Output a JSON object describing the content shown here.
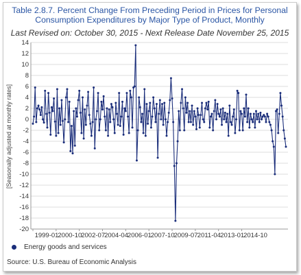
{
  "chart_data": {
    "type": "line",
    "title": "Table 2.8.7. Percent Change From Preceding Period in Prices for Personal Consumption Expenditures by Major Type of Product, Monthly",
    "subtitle": "Last Revised on: October 30, 2015 - Next Release Date November 25, 2015",
    "ylabel": "[Seasonally adjusted at monthly rates]",
    "xlabel": "",
    "ylim": [
      -20,
      14
    ],
    "y_ticks": [
      14,
      12,
      10,
      8,
      6,
      4,
      2,
      0,
      -2,
      -4,
      -6,
      -8,
      -10,
      -12,
      -14,
      -16,
      -18,
      -20
    ],
    "x_ticks": [
      "1999-01",
      "2000-10",
      "2002-07",
      "2004-04",
      "2006-01",
      "2007-10",
      "2009-07",
      "2011-04",
      "2013-01",
      "2014-10"
    ],
    "grid": true,
    "legend_position": "bottom-left",
    "series": [
      {
        "name": "Energy goods and services",
        "color": "#1a2d7a",
        "x_start": "1999-01",
        "frequency": "monthly",
        "values": [
          -0.8,
          0.5,
          5.8,
          -0.5,
          2.0,
          2.5,
          1.8,
          0.8,
          2.2,
          0.0,
          -0.6,
          5.2,
          1.0,
          -1.5,
          4.8,
          1.2,
          -2.8,
          2.2,
          1.5,
          3.8,
          -0.4,
          -3.0,
          5.5,
          -2.5,
          2.0,
          -1.0,
          3.5,
          -0.3,
          -4.2,
          0.0,
          4.0,
          5.5,
          -0.5,
          3.2,
          -5.8,
          -1.2,
          -6.2,
          1.5,
          -4.8,
          2.0,
          0.5,
          3.5,
          5.2,
          1.2,
          -2.5,
          4.0,
          -3.5,
          1.8,
          -1.0,
          2.5,
          5.0,
          0.8,
          -0.8,
          -3.0,
          -0.5,
          5.8,
          -5.3,
          0.0,
          1.5,
          4.8,
          -2.0,
          0.0,
          3.2,
          1.8,
          4.2,
          0.5,
          -2.0,
          2.0,
          -3.0,
          1.8,
          -0.5,
          2.8,
          2.2,
          0.0,
          -2.5,
          3.0,
          1.0,
          -1.0,
          4.8,
          -1.2,
          0.5,
          3.2,
          -2.8,
          2.0,
          1.5,
          4.8,
          0.5,
          -2.5,
          5.2,
          4.0,
          -1.5,
          5.8,
          6.0,
          13.5,
          -7.5,
          -2.0,
          4.0,
          2.2,
          -0.5,
          1.0,
          -2.5,
          5.5,
          -3.0,
          2.8,
          -0.8,
          1.5,
          3.0,
          -1.5,
          0.5,
          4.0,
          2.0,
          -0.5,
          2.8,
          -7.0,
          1.0,
          3.5,
          0.0,
          2.8,
          -1.0,
          3.0,
          0.0,
          -3.0,
          -0.5,
          1.2,
          3.5,
          7.5,
          3.8,
          -0.5,
          -8.5,
          -18.5,
          -8.0,
          -4.0,
          1.5,
          -2.0,
          3.0,
          5.5,
          2.0,
          -2.0,
          4.0,
          1.2,
          3.0,
          -0.5,
          1.5,
          -0.5,
          2.5,
          -1.0,
          1.5,
          0.5,
          -1.8,
          2.0,
          0.8,
          -1.5,
          0.8,
          3.0,
          0.0,
          -0.5,
          2.0,
          3.0,
          1.8,
          3.2,
          -1.5,
          0.5,
          1.0,
          -2.0,
          1.5,
          3.5,
          0.0,
          2.8,
          1.0,
          0.5,
          1.8,
          -1.0,
          2.0,
          0.0,
          1.2,
          -0.5,
          1.0,
          -3.0,
          2.5,
          -0.5,
          -1.0,
          0.5,
          1.8,
          -2.5,
          0.0,
          5.2,
          4.8,
          -2.0,
          1.5,
          1.0,
          -2.0,
          2.0,
          0.5,
          4.5,
          -0.5,
          2.0,
          -1.5,
          1.0,
          0.0,
          -0.5,
          1.0,
          -1.5,
          1.5,
          0.0,
          1.0,
          -0.5,
          1.2,
          0.0,
          0.5,
          0.8,
          0.5,
          -0.5,
          1.0,
          0.5,
          -0.5,
          -1.0,
          -2.0,
          -4.0,
          -5.0,
          -10.0,
          1.5,
          1.8,
          -2.5,
          1.0,
          4.8,
          2.5,
          0.5,
          -2.0,
          -3.5,
          -5.0
        ]
      }
    ],
    "source": "Source: U.S. Bureau of Economic Analysis"
  }
}
